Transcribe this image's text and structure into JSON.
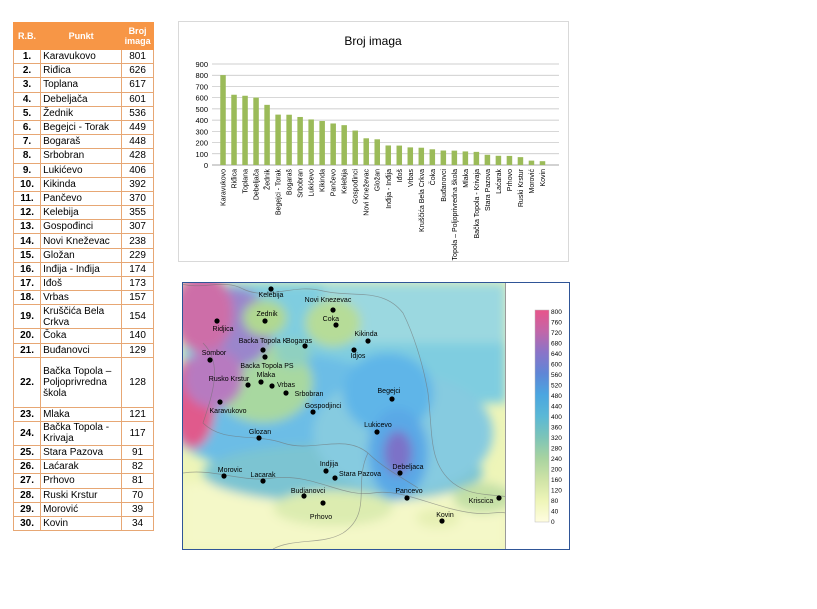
{
  "table": {
    "headers": [
      "R.B.",
      "Punkt",
      "Broj imaga"
    ],
    "rows": [
      [
        "1.",
        "Karavukovo",
        "801"
      ],
      [
        "2.",
        "Riđica",
        "626"
      ],
      [
        "3.",
        "Toplana",
        "617"
      ],
      [
        "4.",
        "Debeljača",
        "601"
      ],
      [
        "5.",
        "Žednik",
        "536"
      ],
      [
        "6.",
        "Begejci - Torak",
        "449"
      ],
      [
        "7.",
        "Bogaraš",
        "448"
      ],
      [
        "8.",
        "Srbobran",
        "428"
      ],
      [
        "9.",
        "Lukićevo",
        "406"
      ],
      [
        "10.",
        "Kikinda",
        "392"
      ],
      [
        "11.",
        "Pančevo",
        "370"
      ],
      [
        "12.",
        "Kelebija",
        "355"
      ],
      [
        "13.",
        "Gospođinci",
        "307"
      ],
      [
        "14.",
        "Novi Kneževac",
        "238"
      ],
      [
        "15.",
        "Gložan",
        "229"
      ],
      [
        "16.",
        "Inđija - Inđija",
        "174"
      ],
      [
        "17.",
        "Iđoš",
        "173"
      ],
      [
        "18.",
        "Vrbas",
        "157"
      ],
      [
        "19.",
        "Kruščića Bela Crkva",
        "154"
      ],
      [
        "20.",
        "Čoka",
        "140"
      ],
      [
        "21.",
        "Buđanovci",
        "129"
      ],
      [
        "22.",
        "Bačka Topola – Poljoprivredna škola",
        "128"
      ],
      [
        "23.",
        "Mlaka",
        "121"
      ],
      [
        "24.",
        "Bačka Topola - Krivaja",
        "117"
      ],
      [
        "25.",
        "Stara Pazova",
        "91"
      ],
      [
        "26.",
        "Laćarak",
        "82"
      ],
      [
        "27.",
        "Prhovo",
        "81"
      ],
      [
        "28.",
        "Ruski Krstur",
        "70"
      ],
      [
        "29.",
        "Morović",
        "39"
      ],
      [
        "30.",
        "Kovin",
        "34"
      ]
    ]
  },
  "chart_data": [
    {
      "type": "bar",
      "title": "Broj imaga",
      "xlabel": "",
      "ylabel": "",
      "ylim": [
        0,
        900
      ],
      "yticks": [
        0,
        100,
        200,
        300,
        400,
        500,
        600,
        700,
        800,
        900
      ],
      "grid": true,
      "color": "#9bbb59",
      "categories": [
        "Karavukovo",
        "Riđica",
        "Toplana",
        "Debeljača",
        "Žednik",
        "Begejci - Torak",
        "Bogaraš",
        "Srbobran",
        "Lukićevo",
        "Kikinda",
        "Pančevo",
        "Kelebija",
        "Gospođinci",
        "Novi Kneževac",
        "Gložan",
        "Inđija - Inđija",
        "Iđoš",
        "Vrbas",
        "Kruščića Bela Crkva",
        "Čoka",
        "Buđanovci",
        "Bačka Topola – Poljoprivredna škola",
        "Mlaka",
        "Bačka Topola - Krivaja",
        "Stara Pazova",
        "Laćarak",
        "Prhovo",
        "Ruski Krstur",
        "Morović",
        "Kovin"
      ],
      "values": [
        801,
        626,
        617,
        601,
        536,
        449,
        448,
        428,
        406,
        392,
        370,
        355,
        307,
        238,
        229,
        174,
        173,
        157,
        154,
        140,
        129,
        128,
        121,
        117,
        91,
        82,
        81,
        70,
        39,
        34
      ]
    },
    {
      "type": "heatmap",
      "title": "",
      "legend": "right",
      "scale_min": 0,
      "scale_max": 800,
      "scale_labels": [
        "800",
        "760",
        "720",
        "680",
        "640",
        "600",
        "560",
        "520",
        "480",
        "440",
        "400",
        "360",
        "320",
        "280",
        "240",
        "200",
        "160",
        "120",
        "80",
        "40",
        "0"
      ],
      "points": [
        {
          "name": "Kelebija",
          "value": 355
        },
        {
          "name": "Novi Knezevac",
          "value": 238
        },
        {
          "name": "Coka",
          "value": 140
        },
        {
          "name": "Zednik",
          "value": 536
        },
        {
          "name": "Ridjica",
          "value": 626
        },
        {
          "name": "Kikinda",
          "value": 392
        },
        {
          "name": "Backa Topola K",
          "value": 117
        },
        {
          "name": "Bogaras",
          "value": 448
        },
        {
          "name": "Idjos",
          "value": 173
        },
        {
          "name": "Sombor",
          "value": 617
        },
        {
          "name": "Backa Topola PS",
          "value": 128
        },
        {
          "name": "Mlaka",
          "value": 121
        },
        {
          "name": "Rusko Krstur",
          "value": 70
        },
        {
          "name": "Vrbas",
          "value": 157
        },
        {
          "name": "Begejci",
          "value": 449
        },
        {
          "name": "Srbobran",
          "value": 428
        },
        {
          "name": "Karavukovo",
          "value": 801
        },
        {
          "name": "Gospodjinci",
          "value": 307
        },
        {
          "name": "Lukicevo",
          "value": 406
        },
        {
          "name": "Glozan",
          "value": 229
        },
        {
          "name": "Debeljaca",
          "value": 601
        },
        {
          "name": "Indjija",
          "value": 174
        },
        {
          "name": "Morovic",
          "value": 39
        },
        {
          "name": "Stara Pazova",
          "value": 91
        },
        {
          "name": "Lacarak",
          "value": 82
        },
        {
          "name": "Pancevo",
          "value": 370
        },
        {
          "name": "Budjanovci",
          "value": 129
        },
        {
          "name": "Kriscica",
          "value": 154
        },
        {
          "name": "Prhovo",
          "value": 81
        },
        {
          "name": "Kovin",
          "value": 34
        }
      ]
    }
  ]
}
